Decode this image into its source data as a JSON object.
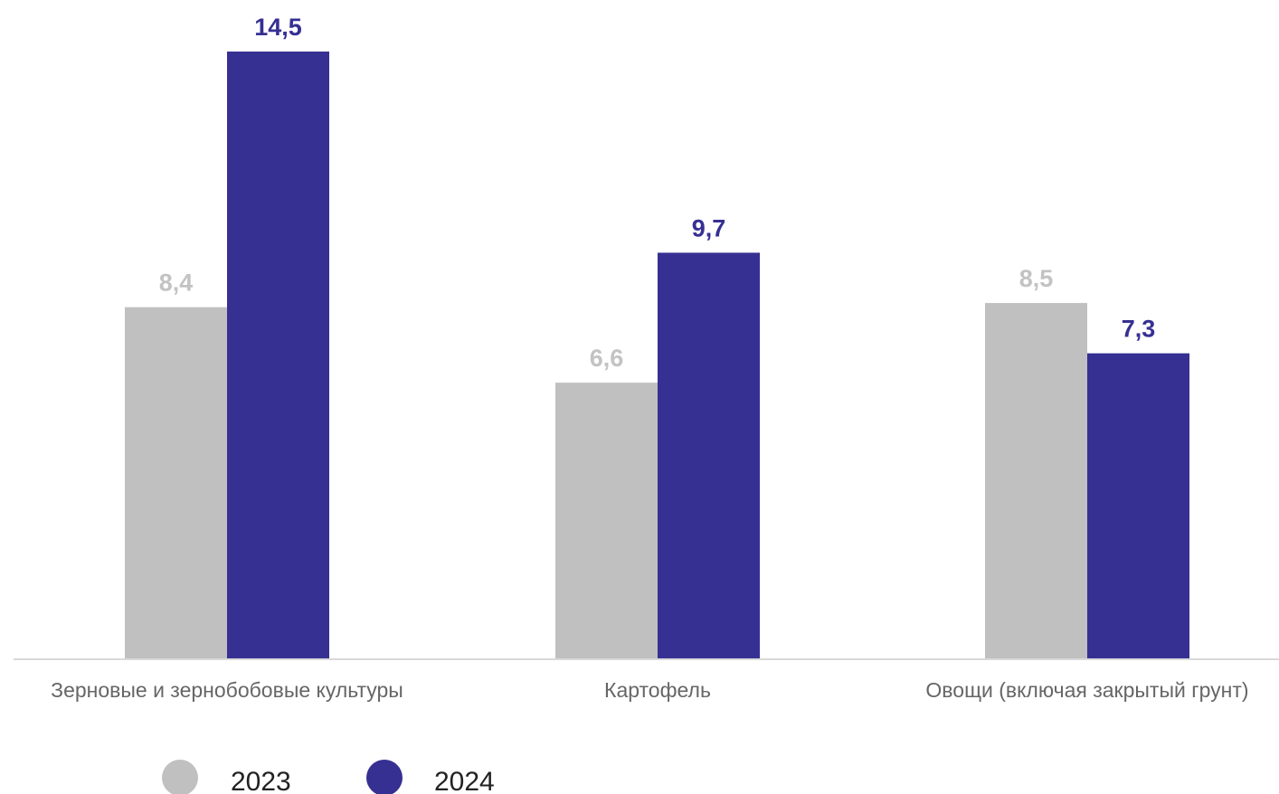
{
  "chart_data": {
    "type": "bar",
    "categories": [
      "Зерновые и зернобобовые культуры",
      "Картофель",
      "Овощи (включая закрытый грунт)"
    ],
    "series": [
      {
        "name": "2023",
        "values": [
          8.4,
          6.6,
          8.5
        ],
        "labels": [
          "8,4",
          "6,6",
          "8,5"
        ],
        "color": "#c0c0c0",
        "label_color": "#c3c3c3"
      },
      {
        "name": "2024",
        "values": [
          14.5,
          9.7,
          7.3
        ],
        "labels": [
          "14,5",
          "9,7",
          "7,3"
        ],
        "color": "#363092",
        "label_color": "#363092"
      }
    ],
    "ylim": [
      0,
      16
    ],
    "grid": false,
    "legend_position": "bottom-left",
    "axis_line_color": "#d9d9d9"
  }
}
